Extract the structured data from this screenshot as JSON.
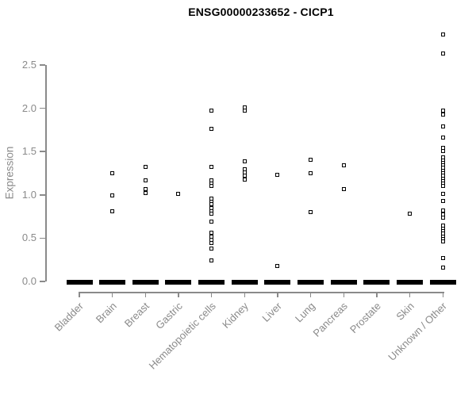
{
  "header": {
    "title": "ENSG00000233652 - CICP1"
  },
  "chart_data": {
    "type": "scatter",
    "title": "ENSG00000233652 - CICP1",
    "xlabel": "",
    "ylabel": "Expression",
    "ylim": [
      0,
      2.9
    ],
    "yticks": [
      0.0,
      0.5,
      1.0,
      1.5,
      2.0,
      2.5
    ],
    "grid": false,
    "legend": "none",
    "marker_style": "small open black square",
    "categories": [
      "Bladder",
      "Brain",
      "Breast",
      "Gastric",
      "Hematopoietic cells",
      "Kidney",
      "Liver",
      "Lung",
      "Pancreas",
      "Prostate",
      "Skin",
      "Unknown / Other"
    ],
    "series": [
      {
        "name": "Bladder",
        "values": [],
        "zero_cluster": true
      },
      {
        "name": "Brain",
        "values": [
          1.25,
          0.99,
          0.81
        ],
        "zero_cluster": true
      },
      {
        "name": "Breast",
        "values": [
          1.32,
          1.17,
          1.07,
          1.02
        ],
        "zero_cluster": true
      },
      {
        "name": "Gastric",
        "values": [
          1.01
        ],
        "zero_cluster": true
      },
      {
        "name": "Hematopoietic cells",
        "values": [
          1.97,
          1.76,
          1.32,
          1.17,
          1.13,
          1.1,
          0.96,
          0.92,
          0.89,
          0.85,
          0.81,
          0.78,
          0.69,
          0.56,
          0.52,
          0.48,
          0.44,
          0.38,
          0.24
        ],
        "zero_cluster": true
      },
      {
        "name": "Kidney",
        "values": [
          2.01,
          1.97,
          1.39,
          1.3,
          1.26,
          1.22,
          1.18
        ],
        "zero_cluster": true
      },
      {
        "name": "Liver",
        "values": [
          1.23,
          0.18
        ],
        "zero_cluster": true
      },
      {
        "name": "Lung",
        "values": [
          1.41,
          1.25,
          0.8
        ],
        "zero_cluster": true
      },
      {
        "name": "Pancreas",
        "values": [
          1.34,
          1.07
        ],
        "zero_cluster": true
      },
      {
        "name": "Prostate",
        "values": [],
        "zero_cluster": true
      },
      {
        "name": "Skin",
        "values": [
          0.78
        ],
        "zero_cluster": true
      },
      {
        "name": "Unknown / Other",
        "values": [
          2.85,
          2.63,
          1.97,
          1.93,
          1.79,
          1.66,
          1.54,
          1.51,
          1.43,
          1.4,
          1.37,
          1.34,
          1.31,
          1.28,
          1.25,
          1.22,
          1.19,
          1.16,
          1.13,
          1.1,
          1.01,
          0.93,
          0.82,
          0.77,
          0.74,
          0.65,
          0.61,
          0.58,
          0.55,
          0.52,
          0.49,
          0.46,
          0.27,
          0.16
        ],
        "zero_cluster": true
      }
    ],
    "colors": {
      "points": "#000000",
      "axis": "#8a8a8a",
      "tick_labels": "#8a8a8a",
      "title": "#000000",
      "background": "#ffffff"
    }
  }
}
